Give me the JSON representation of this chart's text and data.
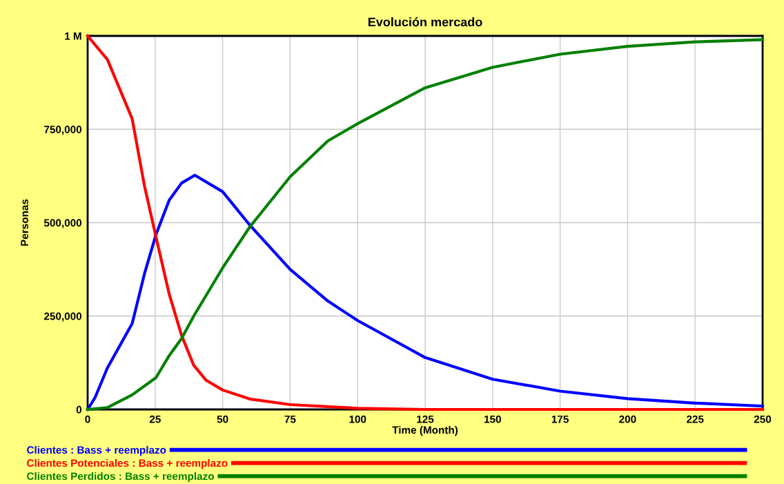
{
  "chart_data": {
    "type": "line",
    "title": "Evolución mercado",
    "xlabel": "Time (Month)",
    "ylabel": "Personas",
    "xlim": [
      0,
      250
    ],
    "xticks": [
      0,
      25,
      50,
      75,
      100,
      125,
      150,
      175,
      200,
      225,
      250
    ],
    "ylim": [
      0,
      1000000
    ],
    "yticks": [
      0,
      {
        "value": 250000,
        "label": "250,000"
      },
      {
        "value": 500000,
        "label": "500,000"
      },
      {
        "value": 750000,
        "label": "750,000"
      },
      {
        "value": 1000000,
        "label": "1 M"
      }
    ],
    "grid": true,
    "legend": "bottom",
    "line_style": "solid",
    "series": [
      {
        "name": "Clientes : Bass + reemplazo",
        "color": "#0000ff",
        "x": [
          0,
          2.7,
          7.3,
          16.5,
          21,
          25.3,
          30.2,
          34.8,
          39.7,
          50,
          60,
          75,
          89,
          100,
          125,
          150,
          175,
          200,
          225,
          250
        ],
        "values": [
          0,
          31000,
          111000,
          230000,
          362000,
          468000,
          560000,
          606000,
          627000,
          583000,
          494000,
          375000,
          290000,
          238000,
          139000,
          81000,
          49000,
          29000,
          17000,
          9000
        ]
      },
      {
        "name": "Clientes Potenciales : Bass + reemplazo",
        "color": "#ff0000",
        "x": [
          0,
          7.3,
          16.5,
          21,
          25.3,
          30.2,
          34.8,
          39.3,
          43.9,
          50,
          60,
          75,
          100,
          125,
          150,
          175,
          200,
          225,
          250
        ],
        "values": [
          1000000,
          937000,
          778000,
          600000,
          462000,
          309000,
          198000,
          118000,
          78000,
          52000,
          28000,
          13000,
          3000,
          0,
          0,
          0,
          0,
          0,
          0
        ]
      },
      {
        "name": "Clientes Perdidos : Bass + reemplazo",
        "color": "#008000",
        "x": [
          0,
          7.3,
          16.5,
          25.3,
          30.2,
          34.8,
          39.3,
          50,
          60,
          75,
          89,
          100,
          125,
          150,
          175,
          200,
          225,
          250
        ],
        "values": [
          0,
          5000,
          39000,
          85000,
          144000,
          190000,
          250000,
          379000,
          488000,
          623000,
          719000,
          765000,
          861000,
          916000,
          951000,
          972000,
          984000,
          990000
        ]
      }
    ]
  }
}
